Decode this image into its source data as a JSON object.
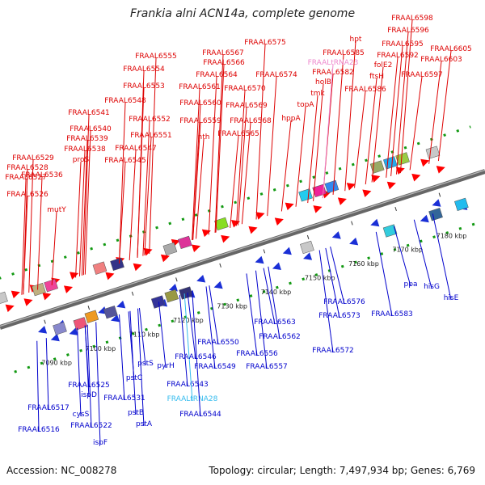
{
  "title": "Frankia alni ACN14a, complete genome",
  "footer": {
    "accession": "Accession: NC_008278",
    "info": "Topology: circular; Length: 7,497,934 bp; Genes: 6,769"
  },
  "colors": {
    "forward_label": "#dd0000",
    "reverse_label": "#0000cc",
    "trna_label": "#33bbee",
    "trna_label_pink": "#ee88cc",
    "forward_arrow": "#ff0000",
    "reverse_arrow": "#1a2fd6",
    "backbone": "#666666",
    "grid_dot": "#119911"
  },
  "ruler": {
    "ticks": [
      "7090 kbp",
      "7100 kbp",
      "7110 kbp",
      "7120 kbp",
      "7130 kbp",
      "7140 kbp",
      "7150 kbp",
      "7160 kbp",
      "7170 kbp",
      "7180 kbp"
    ]
  },
  "forward_genes": [
    "FRAAL6526",
    "FRAAL6527",
    "FRAAL6528",
    "FRAAL6529",
    "mutY",
    "FRAAL6536",
    "proS",
    "FRAAL6538",
    "FRAAL6539",
    "FRAAL6540",
    "FRAAL6541",
    "FRAAL6545",
    "FRAAL6547",
    "FRAAL6551",
    "FRAAL6548",
    "FRAAL6552",
    "FRAAL6553",
    "FRAAL6554",
    "FRAAL6555",
    "FRAAL6559",
    "FRAAL6560",
    "nth",
    "FRAAL6561",
    "FRAAL6564",
    "FRAAL6565",
    "FRAAL6566",
    "FRAAL6567",
    "FRAAL6568",
    "FRAAL6569",
    "FRAAL6570",
    "FRAAL6574",
    "FRAAL6575",
    "hppA",
    "topA",
    "tmk",
    "holB",
    "FRAAL6582",
    "FRAAL6585",
    "FRAALtRNA23",
    "hpt",
    "FRAAL6586",
    "ftsH",
    "folE2",
    "FRAAL6592",
    "FRAAL6595",
    "FRAAL6596",
    "FRAAL6598",
    "FRAAL6597",
    "FRAAL6603",
    "FRAAL6605"
  ],
  "reverse_genes": [
    "FRAAL6516",
    "FRAAL6517",
    "FRAAL6522",
    "FRAAL6525",
    "ispD",
    "cysS",
    "ispF",
    "FRAAL6531",
    "pstB",
    "pstC",
    "pstA",
    "pstS",
    "pyrH",
    "FRAAL6543",
    "FRAALtRNA28",
    "FRAAL6544",
    "FRAAL6546",
    "FRAAL6549",
    "FRAAL6550",
    "FRAAL6556",
    "FRAAL6557",
    "FRAAL6562",
    "FRAAL6563",
    "FRAAL6572",
    "FRAAL6573",
    "FRAAL6576",
    "FRAAL6583",
    "ppa",
    "hisG",
    "hisE"
  ]
}
